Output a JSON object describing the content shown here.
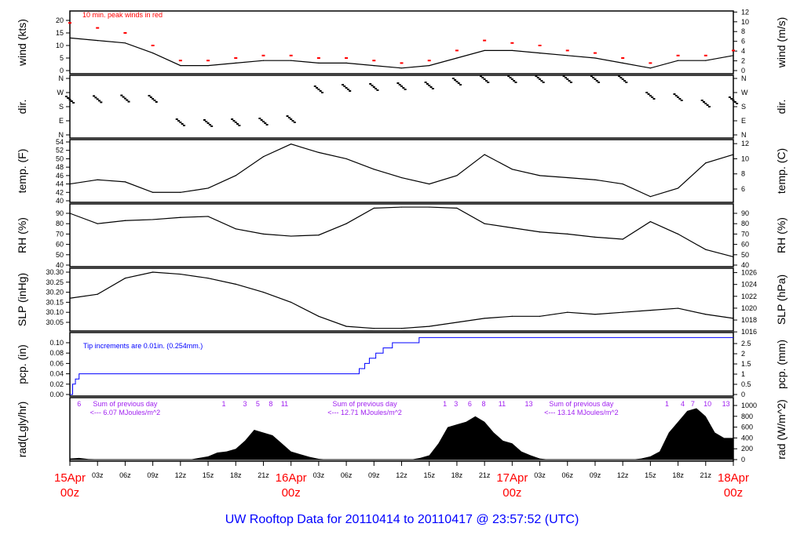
{
  "title": "UW Rooftop Data for 20110414  to  20110417 @ 23:57:52  (UTC)",
  "colors": {
    "line": "#000000",
    "peak": "#ff0000",
    "pcp": "#0000ff",
    "annot": "#a020f0",
    "day": "#ff0000",
    "title": "#0000ff"
  },
  "chart_data": [
    {
      "id": "wind",
      "type": "line",
      "ylabel": "wind (kts)",
      "ylabel_right": "wind (m/s)",
      "yticks": [
        0,
        5,
        10,
        15,
        20
      ],
      "yticks_right": [
        0,
        2,
        4,
        6,
        8,
        10,
        12
      ],
      "annotation": "10 min. peak winds in red",
      "x_hours": [
        0,
        3,
        6,
        9,
        12,
        15,
        18,
        21,
        24,
        27,
        30,
        33,
        36,
        39,
        42,
        45,
        48,
        51,
        54,
        57,
        60,
        63,
        66,
        69,
        72
      ],
      "values": [
        13,
        12,
        11,
        7,
        2,
        2,
        3,
        4,
        4,
        3,
        3,
        2,
        1,
        2,
        5,
        8,
        8,
        7,
        6,
        5,
        3,
        1,
        4,
        4,
        6
      ],
      "peak_values": [
        19,
        17,
        15,
        10,
        4,
        4,
        5,
        6,
        6,
        5,
        5,
        4,
        3,
        4,
        8,
        12,
        11,
        10,
        8,
        7,
        5,
        3,
        6,
        6,
        8
      ]
    },
    {
      "id": "dir",
      "type": "scatter",
      "ylabel": "dir.",
      "ylabel_right": "dir.",
      "yticks": [
        {
          "v": 0,
          "label": "N"
        },
        {
          "v": 90,
          "label": "E"
        },
        {
          "v": 180,
          "label": "S"
        },
        {
          "v": 270,
          "label": "W"
        },
        {
          "v": 360,
          "label": "N"
        }
      ],
      "x_hours": [
        0,
        3,
        6,
        9,
        12,
        15,
        18,
        21,
        24,
        27,
        30,
        33,
        36,
        39,
        42,
        45,
        48,
        51,
        54,
        57,
        60,
        63,
        66,
        69,
        72
      ],
      "values": [
        225,
        228,
        232,
        230,
        80,
        75,
        80,
        85,
        100,
        290,
        300,
        305,
        310,
        315,
        340,
        355,
        355,
        355,
        355,
        355,
        355,
        250,
        240,
        200,
        220
      ]
    },
    {
      "id": "temp",
      "type": "line",
      "ylabel": "temp. (F)",
      "ylabel_right": "temp. (C)",
      "yticks": [
        40,
        42,
        44,
        46,
        48,
        50,
        52,
        54
      ],
      "yticks_right": [
        6,
        8,
        10,
        12
      ],
      "x_hours": [
        0,
        3,
        6,
        9,
        12,
        15,
        18,
        21,
        24,
        27,
        30,
        33,
        36,
        39,
        42,
        45,
        48,
        51,
        54,
        57,
        60,
        63,
        66,
        69,
        72
      ],
      "values": [
        44,
        45,
        44.5,
        42,
        42,
        43,
        46,
        50.5,
        53.5,
        51.5,
        50,
        47.5,
        45.5,
        44,
        46,
        51,
        47.5,
        46,
        45.5,
        45,
        44,
        41,
        43,
        49,
        51
      ]
    },
    {
      "id": "rh",
      "type": "line",
      "ylabel": "RH (%)",
      "ylabel_right": "RH (%)",
      "yticks": [
        40,
        50,
        60,
        70,
        80,
        90
      ],
      "yticks_right": [
        40,
        50,
        60,
        70,
        80,
        90
      ],
      "x_hours": [
        0,
        3,
        6,
        9,
        12,
        15,
        18,
        21,
        24,
        27,
        30,
        33,
        36,
        39,
        42,
        45,
        48,
        51,
        54,
        57,
        60,
        63,
        66,
        69,
        72
      ],
      "values": [
        90,
        80,
        83,
        84,
        86,
        87,
        75,
        70,
        68,
        69,
        80,
        95,
        96,
        96,
        95,
        80,
        76,
        72,
        70,
        67,
        65,
        82,
        70,
        55,
        48
      ]
    },
    {
      "id": "slp",
      "type": "line",
      "ylabel": "SLP (inHg)",
      "ylabel_right": "SLP (hPa)",
      "yticks": [
        30.05,
        30.1,
        30.15,
        30.2,
        30.25,
        30.3
      ],
      "yticks_right": [
        1016,
        1018,
        1020,
        1022,
        1024,
        1026
      ],
      "x_hours": [
        0,
        3,
        6,
        9,
        12,
        15,
        18,
        21,
        24,
        27,
        30,
        33,
        36,
        39,
        42,
        45,
        48,
        51,
        54,
        57,
        60,
        63,
        66,
        69,
        72
      ],
      "values": [
        30.17,
        30.19,
        30.27,
        30.3,
        30.29,
        30.27,
        30.24,
        30.2,
        30.15,
        30.08,
        30.03,
        30.02,
        30.02,
        30.03,
        30.05,
        30.07,
        30.08,
        30.08,
        30.1,
        30.09,
        30.1,
        30.11,
        30.12,
        30.09,
        30.07
      ]
    },
    {
      "id": "pcp",
      "type": "line",
      "ylabel": "pcp. (in)",
      "ylabel_right": "pcp. (mm)",
      "yticks": [
        0.0,
        0.02,
        0.04,
        0.06,
        0.08,
        0.1
      ],
      "yticks_right": [
        0,
        0.5,
        1,
        1.5,
        2,
        2.5
      ],
      "annotation": "Tip increments are 0.01in. (0.254mm.)",
      "x_hours": [
        0,
        0.3,
        0.6,
        1,
        31.4,
        32,
        32.5,
        33.2,
        34,
        35,
        37.9,
        72
      ],
      "values": [
        0,
        0.02,
        0.03,
        0.04,
        0.05,
        0.06,
        0.07,
        0.08,
        0.09,
        0.1,
        0.11,
        0.11
      ]
    },
    {
      "id": "rad",
      "type": "area",
      "ylabel": "rad(Lgly/hr)",
      "ylabel_right": "rad (W/m^2)",
      "yticks_right": [
        0,
        200,
        400,
        600,
        800,
        1000
      ],
      "x_hours": [
        0,
        1,
        2,
        3,
        4,
        13,
        14,
        15,
        16,
        17,
        18,
        19,
        20,
        21,
        22,
        23,
        24,
        25,
        26,
        27,
        28,
        37,
        38,
        39,
        40,
        41,
        42,
        43,
        44,
        45,
        46,
        47,
        48,
        49,
        50,
        51,
        52,
        61,
        62,
        63,
        64,
        65,
        66,
        67,
        68,
        69,
        70,
        71,
        72
      ],
      "values": [
        20,
        30,
        10,
        5,
        0,
        0,
        30,
        60,
        130,
        150,
        200,
        350,
        550,
        500,
        450,
        300,
        150,
        100,
        50,
        15,
        0,
        0,
        30,
        80,
        300,
        600,
        650,
        700,
        800,
        700,
        500,
        350,
        300,
        150,
        80,
        20,
        0,
        0,
        20,
        60,
        150,
        500,
        700,
        900,
        950,
        800,
        500,
        400,
        400
      ],
      "hour_marks": [
        {
          "h": 1,
          "label": "6"
        },
        {
          "h": 16.7,
          "label": "1"
        },
        {
          "h": 19,
          "label": "3"
        },
        {
          "h": 20.4,
          "label": "5"
        },
        {
          "h": 21.8,
          "label": "8"
        },
        {
          "h": 23.3,
          "label": "11"
        },
        {
          "h": 40.7,
          "label": "1"
        },
        {
          "h": 41.9,
          "label": "3"
        },
        {
          "h": 43.4,
          "label": "6"
        },
        {
          "h": 44.9,
          "label": "8"
        },
        {
          "h": 46.9,
          "label": "11"
        },
        {
          "h": 49.8,
          "label": "13"
        },
        {
          "h": 64.8,
          "label": "1"
        },
        {
          "h": 66.5,
          "label": "4"
        },
        {
          "h": 67.6,
          "label": "7"
        },
        {
          "h": 69.2,
          "label": "10"
        },
        {
          "h": 71.2,
          "label": "13"
        }
      ],
      "daily_sums": [
        {
          "h": 6,
          "line1": "Sum of previous day",
          "line2": "<--- 6.07 MJoules/m^2"
        },
        {
          "h": 32,
          "line1": "Sum of previous day",
          "line2": "<--- 12.71 MJoules/m^2"
        },
        {
          "h": 55.5,
          "line1": "Sum of previous day",
          "line2": "<--- 13.14 MJoules/m^2"
        }
      ]
    }
  ],
  "x_axis": {
    "range_hours": [
      0,
      72
    ],
    "ticks": [
      {
        "h": 0,
        "label": "15Apr",
        "sub": "00z",
        "day": true
      },
      {
        "h": 3,
        "label": "03z"
      },
      {
        "h": 6,
        "label": "06z"
      },
      {
        "h": 9,
        "label": "09z"
      },
      {
        "h": 12,
        "label": "12z"
      },
      {
        "h": 15,
        "label": "15z"
      },
      {
        "h": 18,
        "label": "18z"
      },
      {
        "h": 21,
        "label": "21z"
      },
      {
        "h": 24,
        "label": "16Apr",
        "sub": "00z",
        "day": true
      },
      {
        "h": 27,
        "label": "03z"
      },
      {
        "h": 30,
        "label": "06z"
      },
      {
        "h": 33,
        "label": "09z"
      },
      {
        "h": 36,
        "label": "12z"
      },
      {
        "h": 39,
        "label": "15z"
      },
      {
        "h": 42,
        "label": "18z"
      },
      {
        "h": 45,
        "label": "21z"
      },
      {
        "h": 48,
        "label": "17Apr",
        "sub": "00z",
        "day": true
      },
      {
        "h": 51,
        "label": "03z"
      },
      {
        "h": 54,
        "label": "06z"
      },
      {
        "h": 57,
        "label": "09z"
      },
      {
        "h": 60,
        "label": "12z"
      },
      {
        "h": 63,
        "label": "15z"
      },
      {
        "h": 66,
        "label": "18z"
      },
      {
        "h": 69,
        "label": "21z"
      },
      {
        "h": 72,
        "label": "18Apr",
        "sub": "00z",
        "day": true
      }
    ]
  }
}
